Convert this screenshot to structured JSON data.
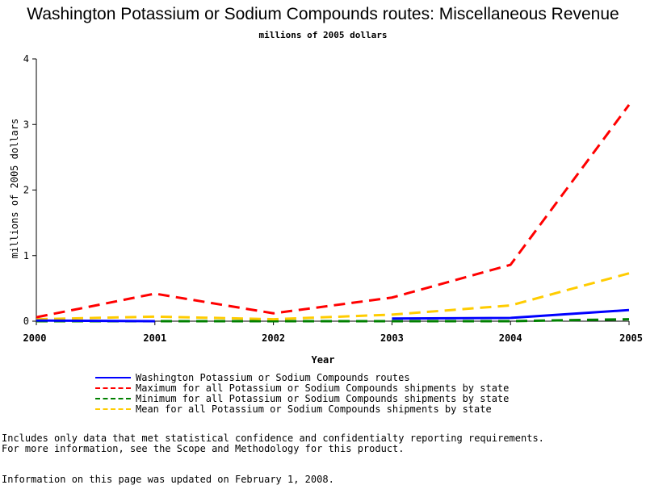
{
  "chart_data": {
    "type": "line",
    "title": "Washington Potassium or Sodium Compounds routes: Miscellaneous Revenue",
    "subtitle": "millions of 2005 dollars",
    "xlabel": "Year",
    "ylabel": "millions of 2005 dollars",
    "x": [
      "2000",
      "2001",
      "2002",
      "2003",
      "2004",
      "2005"
    ],
    "ylim": [
      0,
      4
    ],
    "yticks": [
      "0",
      "1",
      "2",
      "3",
      "4"
    ],
    "grid": false,
    "legend_position": "bottom",
    "series": [
      {
        "name": "Washington Potassium or Sodium Compounds routes",
        "color": "#0000ff",
        "dash": "solid",
        "values": [
          0.01,
          0.0,
          null,
          0.04,
          0.05,
          0.17
        ]
      },
      {
        "name": "Maximum for all Potassium or Sodium Compounds shipments by state",
        "color": "#ff0000",
        "dash": "dashed",
        "values": [
          0.06,
          0.42,
          0.12,
          0.36,
          0.86,
          3.3
        ]
      },
      {
        "name": "Minimum for all Potassium or Sodium Compounds shipments by state",
        "color": "#008000",
        "dash": "dashed",
        "values": [
          0.0,
          0.0,
          0.0,
          0.0,
          0.0,
          0.03
        ]
      },
      {
        "name": "Mean for all Potassium or Sodium Compounds shipments by state",
        "color": "#ffcc00",
        "dash": "dashed",
        "values": [
          0.03,
          0.07,
          0.03,
          0.1,
          0.24,
          0.73
        ]
      }
    ]
  },
  "footnotes": {
    "line1": "Includes only data that met statistical confidence and confidentialty reporting requirements.",
    "line2": "For more information, see the Scope and Methodology for this product.",
    "line3": "Information on this page was updated on February 1, 2008."
  }
}
